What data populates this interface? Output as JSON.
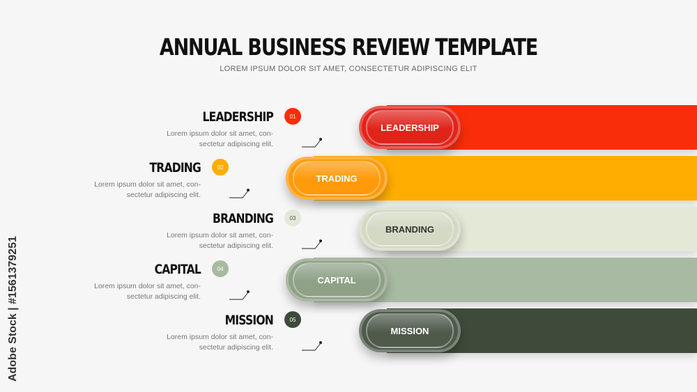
{
  "header": {
    "title": "ANNUAL BUSINESS REVIEW TEMPLATE",
    "subtitle": "LOREM IPSUM DOLOR SIT AMET, CONSECTETUR ADIPISCING ELIT"
  },
  "items": [
    {
      "number": "01",
      "title": "LEADERSHIP",
      "pill": "LEADERSHIP",
      "desc1": "Lorem ipsum dolor sit amet, con-",
      "desc2": "sectetur adipiscing elit.",
      "color": "#fa2d0a",
      "pill_color": "#e0241a",
      "text_color": "#ffffff"
    },
    {
      "number": "02",
      "title": "TRADING",
      "pill": "TRADING",
      "desc1": "Lorem ipsum dolor sit amet, con-",
      "desc2": "sectetur adipiscing elit.",
      "color": "#ffad00",
      "pill_color": "#ff9a0a",
      "text_color": "#ffffff"
    },
    {
      "number": "03",
      "title": "BRANDING",
      "pill": "BRANDING",
      "desc1": "Lorem ipsum dolor sit amet, con-",
      "desc2": "sectetur adipiscing elit.",
      "color": "#e4e8d7",
      "pill_color": "#d4d9c4",
      "text_color": "#333333"
    },
    {
      "number": "04",
      "title": "CAPITAL",
      "pill": "CAPITAL",
      "desc1": "Lorem ipsum dolor sit amet, con-",
      "desc2": "sectetur adipiscing elit.",
      "color": "#a8baa1",
      "pill_color": "#8fa187",
      "text_color": "#ffffff"
    },
    {
      "number": "05",
      "title": "MISSION",
      "pill": "MISSION",
      "desc1": "Lorem ipsum dolor sit amet, con-",
      "desc2": "sectetur adipiscing elit.",
      "color": "#3e4b3a",
      "pill_color": "#4f5a4b",
      "text_color": "#ffffff"
    }
  ],
  "watermark": "Adobe Stock | #1561379251"
}
